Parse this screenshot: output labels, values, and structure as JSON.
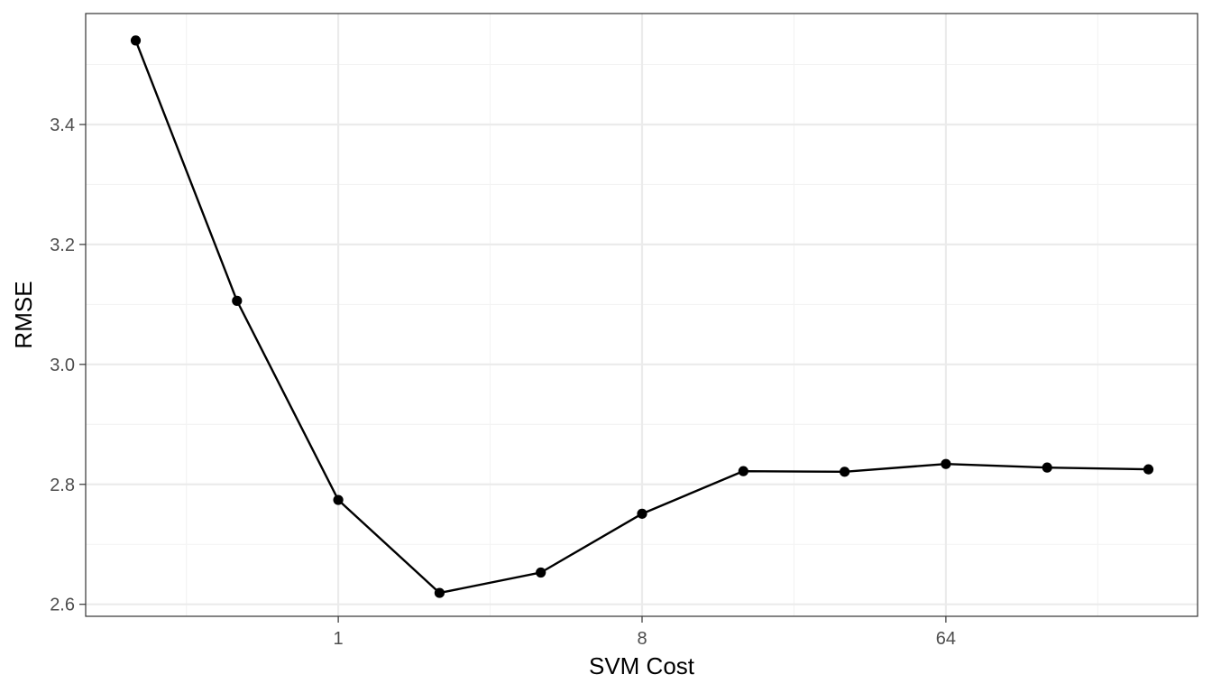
{
  "chart_data": {
    "type": "line",
    "title": "",
    "xlabel": "SVM Cost",
    "ylabel": "RMSE",
    "x_scale": "log2",
    "xlim": [
      0.25,
      256
    ],
    "ylim": [
      2.58,
      3.585
    ],
    "x_ticks": [
      {
        "value": 1,
        "label": "1"
      },
      {
        "value": 8,
        "label": "8"
      },
      {
        "value": 64,
        "label": "64"
      }
    ],
    "x_minor_ticks": [
      0.3536,
      2.828,
      22.63,
      181.0
    ],
    "y_ticks": [
      {
        "value": 2.6,
        "label": "2.6"
      },
      {
        "value": 2.8,
        "label": "2.8"
      },
      {
        "value": 3.0,
        "label": "3.0"
      },
      {
        "value": 3.2,
        "label": "3.2"
      },
      {
        "value": 3.4,
        "label": "3.4"
      }
    ],
    "y_minor_ticks": [
      2.7,
      2.9,
      3.1,
      3.3,
      3.5
    ],
    "grid": true,
    "series": [
      {
        "x": [
          0.25,
          0.5,
          1,
          2,
          4,
          8,
          16,
          32,
          64,
          128,
          256
        ],
        "values": [
          3.54,
          3.106,
          2.774,
          2.619,
          2.653,
          2.751,
          2.822,
          2.821,
          2.834,
          2.828,
          2.825
        ],
        "color": "#000000"
      }
    ],
    "colors": {
      "line": "#000000",
      "points": "#000000",
      "panel_border": "#333333",
      "grid_major": "#ebebeb",
      "grid_minor": "#f3f3f3",
      "tick_text": "#4d4d4d",
      "axis_title": "#000000"
    }
  }
}
